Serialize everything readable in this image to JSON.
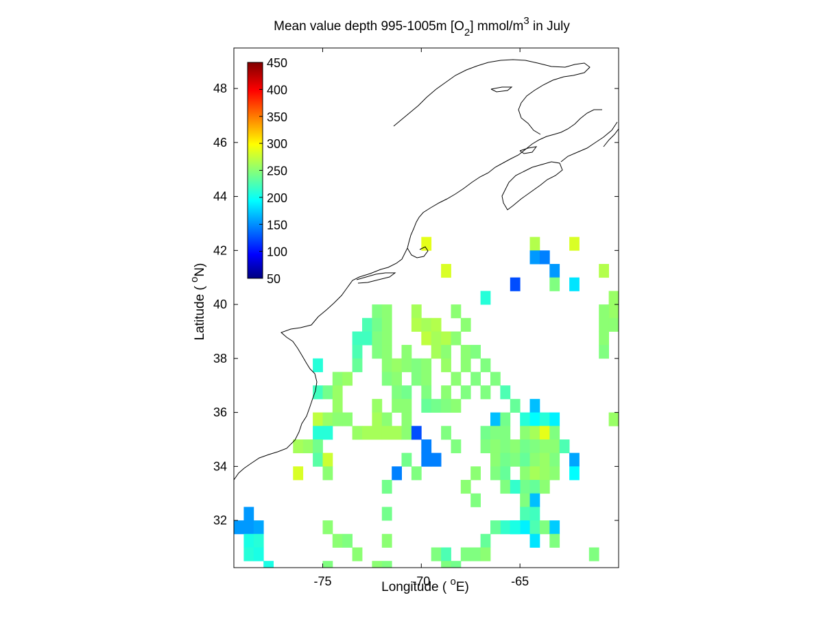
{
  "chart_data": {
    "type": "heatmap",
    "title": {
      "prefix": "Mean value depth 995-1005m [O",
      "sub": "2",
      "mid": "] mmol/m",
      "sup": "3",
      "suffix": " in July"
    },
    "xlabel": {
      "pre": "Longitude ( ",
      "sup": "o",
      "post": "E)"
    },
    "ylabel": {
      "pre": "Latitude ( ",
      "sup": "o",
      "post": "N)"
    },
    "xlim": [
      -79.5,
      -60.0
    ],
    "ylim": [
      30.25,
      49.5
    ],
    "xticks": [
      -75,
      -70,
      -65
    ],
    "yticks": [
      32,
      34,
      36,
      38,
      40,
      42,
      44,
      46,
      48
    ],
    "grid": false,
    "cell_size_deg": 0.5,
    "colorbar": {
      "placement": "top-left",
      "colormap": "jet",
      "min": 50,
      "max": 450,
      "ticks": [
        50,
        100,
        150,
        200,
        250,
        300,
        350,
        400,
        450
      ]
    },
    "cells": [
      [
        -69.75,
        42.25,
        290
      ],
      [
        -68.75,
        41.25,
        285
      ],
      [
        -64.25,
        42.25,
        270
      ],
      [
        -62.25,
        42.25,
        285
      ],
      [
        -64.25,
        41.75,
        160
      ],
      [
        -63.75,
        41.75,
        150
      ],
      [
        -63.25,
        41.25,
        160
      ],
      [
        -60.75,
        41.25,
        270
      ],
      [
        -65.25,
        40.75,
        130
      ],
      [
        -63.25,
        40.75,
        250
      ],
      [
        -62.25,
        40.75,
        190
      ],
      [
        -66.75,
        40.25,
        215
      ],
      [
        -60.25,
        40.25,
        260
      ],
      [
        -60.25,
        39.75,
        260
      ],
      [
        -60.75,
        39.75,
        255
      ],
      [
        -60.75,
        39.25,
        255
      ],
      [
        -60.25,
        39.25,
        255
      ],
      [
        -60.75,
        38.75,
        255
      ],
      [
        -60.75,
        38.25,
        250
      ],
      [
        -72.25,
        39.75,
        250
      ],
      [
        -71.75,
        39.75,
        255
      ],
      [
        -70.25,
        39.75,
        265
      ],
      [
        -68.25,
        39.75,
        255
      ],
      [
        -72.75,
        39.25,
        230
      ],
      [
        -72.25,
        39.25,
        245
      ],
      [
        -71.75,
        39.25,
        255
      ],
      [
        -70.25,
        39.25,
        270
      ],
      [
        -69.75,
        39.25,
        265
      ],
      [
        -69.25,
        39.25,
        270
      ],
      [
        -67.75,
        39.25,
        255
      ],
      [
        -73.25,
        38.75,
        225
      ],
      [
        -72.75,
        38.75,
        225
      ],
      [
        -72.25,
        38.75,
        250
      ],
      [
        -71.75,
        38.75,
        255
      ],
      [
        -69.75,
        38.75,
        275
      ],
      [
        -69.25,
        38.75,
        265
      ],
      [
        -68.75,
        38.75,
        270
      ],
      [
        -68.25,
        38.75,
        255
      ],
      [
        -73.25,
        38.25,
        230
      ],
      [
        -72.25,
        38.25,
        250
      ],
      [
        -71.75,
        38.25,
        255
      ],
      [
        -70.75,
        38.25,
        255
      ],
      [
        -69.25,
        38.25,
        265
      ],
      [
        -68.75,
        38.25,
        255
      ],
      [
        -67.75,
        38.25,
        255
      ],
      [
        -67.25,
        38.25,
        250
      ],
      [
        -75.25,
        37.75,
        215
      ],
      [
        -73.25,
        37.75,
        240
      ],
      [
        -71.75,
        37.75,
        255
      ],
      [
        -71.25,
        37.75,
        260
      ],
      [
        -70.75,
        37.75,
        255
      ],
      [
        -70.25,
        37.75,
        250
      ],
      [
        -69.75,
        37.75,
        255
      ],
      [
        -68.75,
        37.75,
        260
      ],
      [
        -67.75,
        37.75,
        255
      ],
      [
        -66.75,
        37.75,
        250
      ],
      [
        -74.25,
        37.25,
        255
      ],
      [
        -73.75,
        37.25,
        260
      ],
      [
        -71.75,
        37.25,
        250
      ],
      [
        -71.25,
        37.25,
        255
      ],
      [
        -70.25,
        37.25,
        250
      ],
      [
        -69.75,
        37.25,
        255
      ],
      [
        -68.25,
        37.25,
        255
      ],
      [
        -67.25,
        37.25,
        250
      ],
      [
        -66.25,
        37.25,
        250
      ],
      [
        -75.25,
        36.75,
        225
      ],
      [
        -74.75,
        36.75,
        245
      ],
      [
        -74.25,
        36.75,
        260
      ],
      [
        -71.25,
        36.75,
        250
      ],
      [
        -70.75,
        36.75,
        245
      ],
      [
        -69.75,
        36.75,
        250
      ],
      [
        -68.75,
        36.75,
        255
      ],
      [
        -67.75,
        36.75,
        250
      ],
      [
        -66.75,
        36.75,
        250
      ],
      [
        -65.75,
        36.75,
        230
      ],
      [
        -74.25,
        36.25,
        260
      ],
      [
        -72.25,
        36.25,
        260
      ],
      [
        -71.25,
        36.25,
        255
      ],
      [
        -70.75,
        36.25,
        255
      ],
      [
        -69.75,
        36.25,
        240
      ],
      [
        -69.25,
        36.25,
        245
      ],
      [
        -68.75,
        36.25,
        250
      ],
      [
        -68.25,
        36.25,
        255
      ],
      [
        -65.25,
        36.25,
        240
      ],
      [
        -64.25,
        36.25,
        175
      ],
      [
        -75.25,
        35.75,
        275
      ],
      [
        -74.75,
        35.75,
        260
      ],
      [
        -74.25,
        35.75,
        255
      ],
      [
        -73.75,
        35.75,
        255
      ],
      [
        -72.25,
        35.75,
        265
      ],
      [
        -71.75,
        35.75,
        255
      ],
      [
        -70.75,
        35.75,
        255
      ],
      [
        -66.25,
        35.75,
        175
      ],
      [
        -65.75,
        35.75,
        245
      ],
      [
        -64.75,
        35.75,
        215
      ],
      [
        -64.25,
        35.75,
        200
      ],
      [
        -63.75,
        35.75,
        215
      ],
      [
        -63.25,
        35.75,
        195
      ],
      [
        -60.25,
        35.75,
        260
      ],
      [
        -75.25,
        35.25,
        215
      ],
      [
        -74.75,
        35.25,
        215
      ],
      [
        -73.25,
        35.25,
        260
      ],
      [
        -72.75,
        35.25,
        265
      ],
      [
        -72.25,
        35.25,
        265
      ],
      [
        -71.75,
        35.25,
        265
      ],
      [
        -71.25,
        35.25,
        265
      ],
      [
        -70.75,
        35.25,
        255
      ],
      [
        -70.25,
        35.25,
        130
      ],
      [
        -68.75,
        35.25,
        250
      ],
      [
        -66.75,
        35.25,
        245
      ],
      [
        -66.25,
        35.25,
        250
      ],
      [
        -65.75,
        35.25,
        250
      ],
      [
        -64.75,
        35.25,
        255
      ],
      [
        -64.25,
        35.25,
        265
      ],
      [
        -63.75,
        35.25,
        290
      ],
      [
        -63.25,
        35.25,
        250
      ],
      [
        -76.25,
        34.75,
        265
      ],
      [
        -75.75,
        34.75,
        260
      ],
      [
        -75.25,
        34.75,
        245
      ],
      [
        -69.75,
        34.75,
        150
      ],
      [
        -68.25,
        34.75,
        250
      ],
      [
        -66.75,
        34.75,
        250
      ],
      [
        -66.25,
        34.75,
        255
      ],
      [
        -65.75,
        34.75,
        250
      ],
      [
        -65.25,
        34.75,
        255
      ],
      [
        -64.75,
        34.75,
        245
      ],
      [
        -64.25,
        34.75,
        250
      ],
      [
        -63.75,
        34.75,
        255
      ],
      [
        -63.25,
        34.75,
        255
      ],
      [
        -62.75,
        34.75,
        230
      ],
      [
        -75.25,
        34.25,
        235
      ],
      [
        -74.75,
        34.25,
        280
      ],
      [
        -70.75,
        34.25,
        245
      ],
      [
        -69.75,
        34.25,
        150
      ],
      [
        -69.25,
        34.25,
        150
      ],
      [
        -66.25,
        34.25,
        255
      ],
      [
        -65.75,
        34.25,
        245
      ],
      [
        -65.25,
        34.25,
        250
      ],
      [
        -64.75,
        34.25,
        240
      ],
      [
        -64.25,
        34.25,
        255
      ],
      [
        -63.75,
        34.25,
        260
      ],
      [
        -63.25,
        34.25,
        250
      ],
      [
        -62.25,
        34.25,
        165
      ],
      [
        -76.25,
        33.75,
        285
      ],
      [
        -74.75,
        33.75,
        255
      ],
      [
        -71.25,
        33.75,
        150
      ],
      [
        -70.25,
        33.75,
        250
      ],
      [
        -67.25,
        33.75,
        255
      ],
      [
        -66.25,
        33.75,
        250
      ],
      [
        -65.75,
        33.75,
        240
      ],
      [
        -64.75,
        33.75,
        255
      ],
      [
        -64.25,
        33.75,
        265
      ],
      [
        -63.75,
        33.75,
        260
      ],
      [
        -63.25,
        33.75,
        255
      ],
      [
        -62.25,
        33.75,
        200
      ],
      [
        -71.75,
        33.25,
        245
      ],
      [
        -67.75,
        33.25,
        255
      ],
      [
        -65.75,
        33.25,
        250
      ],
      [
        -64.75,
        33.25,
        245
      ],
      [
        -64.25,
        33.25,
        240
      ],
      [
        -63.75,
        33.25,
        255
      ],
      [
        -65.25,
        33.25,
        220
      ],
      [
        -67.25,
        32.75,
        250
      ],
      [
        -64.75,
        32.75,
        250
      ],
      [
        -64.25,
        32.75,
        175
      ],
      [
        -78.75,
        32.25,
        160
      ],
      [
        -71.75,
        32.25,
        245
      ],
      [
        -64.75,
        32.25,
        230
      ],
      [
        -64.25,
        32.25,
        225
      ],
      [
        -79.25,
        31.75,
        160
      ],
      [
        -78.75,
        31.75,
        160
      ],
      [
        -78.25,
        31.75,
        165
      ],
      [
        -74.75,
        31.75,
        255
      ],
      [
        -65.75,
        31.75,
        220
      ],
      [
        -66.25,
        31.75,
        240
      ],
      [
        -65.25,
        31.75,
        200
      ],
      [
        -64.75,
        31.75,
        195
      ],
      [
        -64.25,
        31.75,
        230
      ],
      [
        -63.75,
        31.75,
        250
      ],
      [
        -63.25,
        31.75,
        180
      ],
      [
        -65.25,
        31.75,
        210
      ],
      [
        -78.75,
        31.25,
        210
      ],
      [
        -78.25,
        31.25,
        215
      ],
      [
        -74.25,
        31.25,
        255
      ],
      [
        -73.75,
        31.25,
        250
      ],
      [
        -71.75,
        31.25,
        255
      ],
      [
        -66.75,
        31.25,
        240
      ],
      [
        -64.25,
        31.25,
        190
      ],
      [
        -63.25,
        31.25,
        250
      ],
      [
        -78.75,
        30.75,
        215
      ],
      [
        -78.25,
        30.75,
        210
      ],
      [
        -73.25,
        30.75,
        255
      ],
      [
        -69.25,
        30.75,
        250
      ],
      [
        -68.75,
        30.75,
        230
      ],
      [
        -67.75,
        30.75,
        250
      ],
      [
        -67.25,
        30.75,
        250
      ],
      [
        -66.75,
        30.75,
        255
      ],
      [
        -61.25,
        30.75,
        250
      ],
      [
        -77.75,
        30.25,
        210
      ],
      [
        -74.75,
        30.25,
        250
      ],
      [
        -72.25,
        30.25,
        255
      ],
      [
        -71.75,
        30.25,
        250
      ],
      [
        -68.75,
        30.25,
        250
      ],
      [
        -68.25,
        30.25,
        245
      ]
    ]
  }
}
